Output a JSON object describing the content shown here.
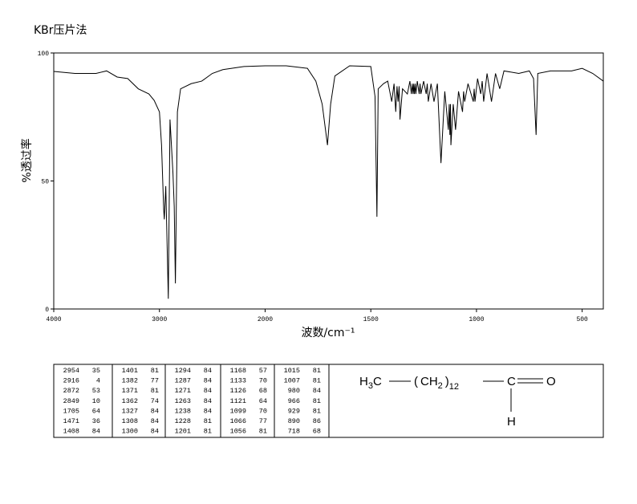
{
  "chart_data": {
    "type": "line",
    "title": "KBr压片法",
    "x_label": "波数/cm⁻¹",
    "y_label": "%透过率",
    "xlim": [
      4000,
      400
    ],
    "ylim": [
      0,
      100
    ],
    "xticks": [
      4000,
      3000,
      2000,
      1500,
      1000,
      500
    ],
    "yticks": [
      0,
      50,
      100
    ],
    "x_scale_change": 2000,
    "series": [
      {
        "color": "#000000",
        "x": [
          4000,
          3800,
          3600,
          3500,
          3400,
          3300,
          3200,
          3100,
          3050,
          3000,
          2980,
          2960,
          2954,
          2940,
          2930,
          2916,
          2900,
          2880,
          2872,
          2860,
          2849,
          2830,
          2800,
          2700,
          2600,
          2500,
          2400,
          2200,
          2000,
          1900,
          1800,
          1760,
          1730,
          1705,
          1690,
          1670,
          1600,
          1500,
          1480,
          1471,
          1465,
          1440,
          1420,
          1408,
          1401,
          1390,
          1382,
          1376,
          1371,
          1366,
          1362,
          1350,
          1327,
          1315,
          1308,
          1304,
          1300,
          1297,
          1294,
          1290,
          1287,
          1280,
          1271,
          1267,
          1263,
          1250,
          1238,
          1233,
          1228,
          1215,
          1201,
          1185,
          1168,
          1150,
          1133,
          1129,
          1126,
          1123,
          1121,
          1110,
          1099,
          1085,
          1066,
          1061,
          1056,
          1040,
          1015,
          1011,
          1007,
          995,
          980,
          973,
          966,
          950,
          929,
          910,
          890,
          870,
          800,
          750,
          730,
          718,
          710,
          650,
          550,
          500,
          450,
          400
        ],
        "values": [
          92.8,
          92,
          92,
          93,
          90.6,
          90,
          86,
          84,
          81.5,
          77,
          64,
          39,
          35,
          48,
          30,
          4,
          74,
          59,
          53,
          40,
          10,
          77,
          86,
          88,
          89,
          92,
          93.5,
          94.7,
          95,
          95,
          94,
          89,
          80,
          64,
          80,
          91,
          95,
          94.7,
          83,
          36,
          86,
          88,
          89,
          84,
          81,
          88,
          77,
          87,
          81,
          87,
          74,
          86,
          84,
          89,
          84,
          88,
          84,
          88,
          84,
          88,
          84,
          89,
          84,
          88,
          84,
          89,
          84,
          88,
          81,
          88,
          81,
          88,
          57,
          85,
          70,
          80,
          68,
          80,
          64,
          80,
          70,
          85,
          77,
          85,
          81,
          88,
          81,
          86,
          81,
          90,
          84,
          89,
          81,
          92,
          81,
          92,
          86,
          93,
          92,
          93,
          90,
          68,
          92,
          93,
          93,
          94,
          92,
          89
        ]
      }
    ]
  },
  "peak_table": {
    "rows": [
      [
        2954,
        35
      ],
      [
        2916,
        4
      ],
      [
        2872,
        53
      ],
      [
        2849,
        10
      ],
      [
        1705,
        64
      ],
      [
        1471,
        36
      ],
      [
        1408,
        84
      ],
      [
        1401,
        81
      ],
      [
        1382,
        77
      ],
      [
        1371,
        81
      ],
      [
        1362,
        74
      ],
      [
        1327,
        84
      ],
      [
        1308,
        84
      ],
      [
        1300,
        84
      ],
      [
        1294,
        84
      ],
      [
        1287,
        84
      ],
      [
        1271,
        84
      ],
      [
        1263,
        84
      ],
      [
        1238,
        84
      ],
      [
        1228,
        81
      ],
      [
        1201,
        81
      ],
      [
        1168,
        57
      ],
      [
        1133,
        70
      ],
      [
        1126,
        68
      ],
      [
        1121,
        64
      ],
      [
        1099,
        70
      ],
      [
        1066,
        77
      ],
      [
        1056,
        81
      ],
      [
        1015,
        81
      ],
      [
        1007,
        81
      ],
      [
        980,
        84
      ],
      [
        966,
        81
      ],
      [
        929,
        81
      ],
      [
        890,
        86
      ],
      [
        718,
        68
      ]
    ]
  },
  "structure": {
    "methyl": [
      "H",
      "3",
      "C"
    ],
    "chain": [
      "(",
      "CH",
      "2",
      ")",
      "12"
    ],
    "carbonyl": "C",
    "oxygen": "O",
    "hydrogen": "H"
  }
}
